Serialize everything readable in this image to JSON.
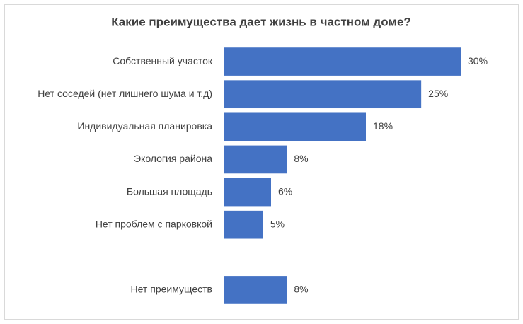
{
  "chart_data": {
    "type": "bar",
    "orientation": "horizontal",
    "title": "Какие преимущества дает жизнь в частном доме?",
    "categories": [
      "Собственный участок",
      "Нет соседей (нет лишнего шума и т.д)",
      "Индивидуальная планировка",
      "Экология района",
      "Большая площадь",
      "Нет проблем с парковкой",
      null,
      "Нет преимуществ"
    ],
    "values": [
      30,
      25,
      18,
      8,
      6,
      5,
      null,
      8
    ],
    "value_labels": [
      "30%",
      "25%",
      "18%",
      "8%",
      "6%",
      "5%",
      null,
      "8%"
    ],
    "color": "#4472c4"
  }
}
